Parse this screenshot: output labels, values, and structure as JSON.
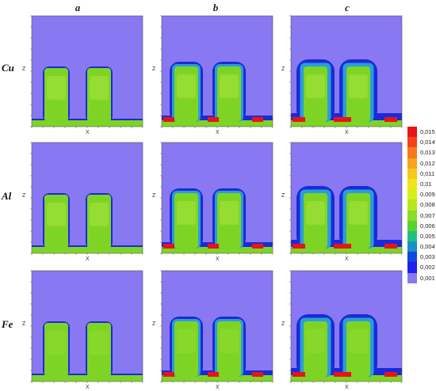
{
  "columns": [
    "a",
    "b",
    "c"
  ],
  "rows": [
    "Cu",
    "Al",
    "Fe"
  ],
  "axes": {
    "x_label": "X",
    "z_label": "Z"
  },
  "legend": {
    "labels": [
      "0,015",
      "0,014",
      "0,013",
      "0,012",
      "0,011",
      "0,01",
      "0,009",
      "0,008",
      "0,007",
      "0,006",
      "0,005",
      "0,004",
      "0,003",
      "0,002",
      "0,001"
    ],
    "colors": [
      "#e8141a",
      "#f2421a",
      "#f67a1c",
      "#f8a41c",
      "#f8c81a",
      "#f2e41a",
      "#d8ee1a",
      "#b4e81c",
      "#8cdc28",
      "#5ad02e",
      "#20c080",
      "#1890c8",
      "#1048e0",
      "#2020ee",
      "#8878f2"
    ]
  },
  "palette": {
    "background": "#8878f2",
    "fill": "#7ed424",
    "fill_light": "#a8e240",
    "coat_light": "#2a9ed6",
    "coat_dark": "#1a2ad8",
    "hot": "#e8141a",
    "cyan_edge": "#30c0d8"
  }
}
